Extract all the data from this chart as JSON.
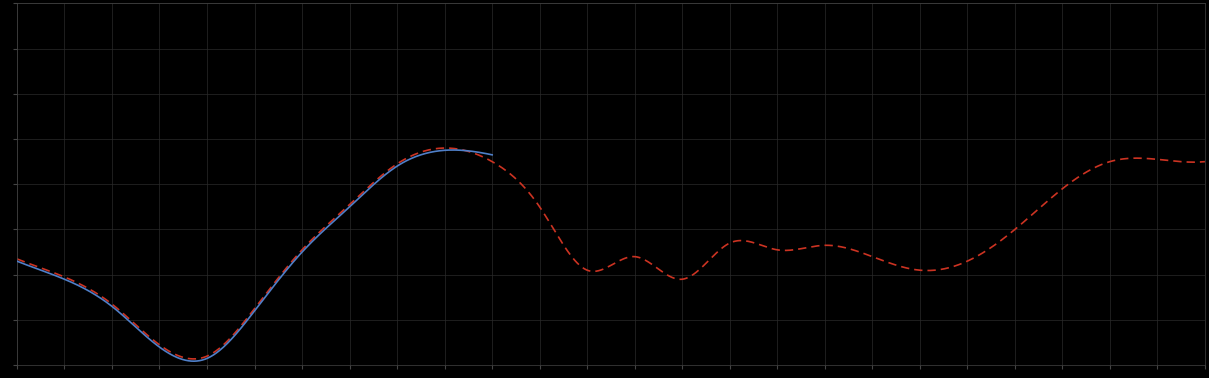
{
  "background_color": "#000000",
  "plot_bg_color": "#000000",
  "grid_color": "#2a2a2a",
  "line1_color": "#4f7fc8",
  "line2_color": "#cc3322",
  "figsize": [
    12.09,
    3.78
  ],
  "dpi": 100,
  "xlim": [
    0,
    100
  ],
  "ylim": [
    -4.0,
    3.5
  ],
  "grid_linewidth": 0.5,
  "line_linewidth": 1.2,
  "n_xticks": 26,
  "n_yticks": 9
}
